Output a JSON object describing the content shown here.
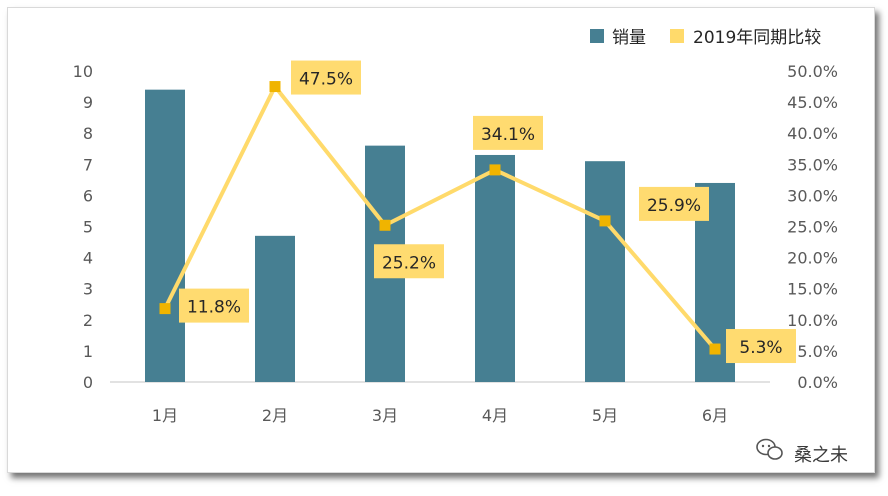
{
  "chart_data": {
    "type": "bar",
    "title": "",
    "xlabel": "",
    "ylabel": "",
    "categories": [
      "1月",
      "2月",
      "3月",
      "4月",
      "5月",
      "6月"
    ],
    "series": [
      {
        "name": "销量",
        "type": "bar",
        "axis": "left",
        "values": [
          9.4,
          4.7,
          7.6,
          7.3,
          7.1,
          6.4
        ]
      },
      {
        "name": "2019年同期比较",
        "type": "line",
        "axis": "right",
        "values": [
          11.8,
          47.5,
          25.2,
          34.1,
          25.9,
          5.3
        ]
      }
    ],
    "data_labels": [
      "11.8%",
      "47.5%",
      "25.2%",
      "34.1%",
      "25.9%",
      "5.3%"
    ],
    "ylim_left": [
      0,
      10
    ],
    "ylim_right": [
      0,
      50
    ],
    "y_left_ticks": [
      "0",
      "1",
      "2",
      "3",
      "4",
      "5",
      "6",
      "7",
      "8",
      "9",
      "10"
    ],
    "y_right_ticks": [
      "0.0%",
      "5.0%",
      "10.0%",
      "15.0%",
      "20.0%",
      "25.0%",
      "30.0%",
      "35.0%",
      "40.0%",
      "45.0%",
      "50.0%"
    ],
    "legend_position": "top-right",
    "grid": false
  },
  "colors": {
    "bar": "#467f92",
    "line": "#ffda6b",
    "marker": "#f0b400",
    "label_bg": "#ffdb70"
  },
  "watermark": {
    "text": "桑之未",
    "icon": "wechat-icon"
  }
}
